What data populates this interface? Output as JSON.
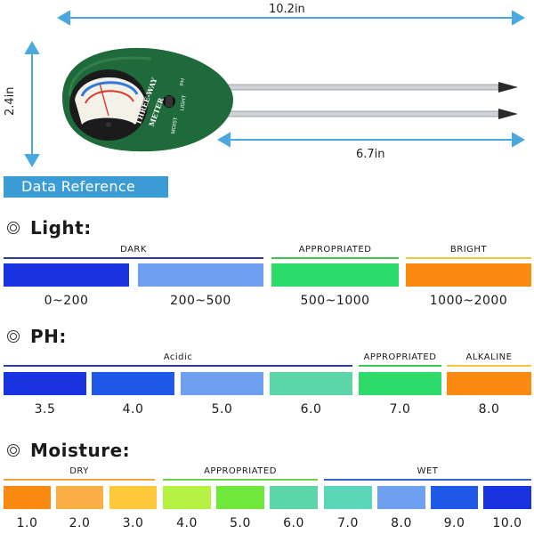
{
  "dimensions": {
    "length_total": "10.2in",
    "height": "2.4in",
    "probe_length": "6.7in"
  },
  "meter": {
    "brand_line1": "THREE-WAY",
    "brand_line2": "METER",
    "switch_labels": [
      "PH",
      "LIGHT",
      "MOIST"
    ],
    "body_color": "#1e6a3a"
  },
  "banner": "Data Reference",
  "light": {
    "title": "Light:",
    "categories": [
      {
        "label": "DARK",
        "color": "#2a3b9a"
      },
      {
        "label": "APPROPRIATED",
        "color": "#3ec44f"
      },
      {
        "label": "BRIGHT",
        "color": "#f2c53b"
      }
    ],
    "bars": [
      {
        "color": "#1a33e0",
        "value": "0~200"
      },
      {
        "color": "#6f9ff0",
        "value": "200~500"
      },
      {
        "color": "#2ddb6a",
        "value": "500~1000"
      },
      {
        "color": "#fb8a12",
        "value": "1000~2000"
      }
    ]
  },
  "ph": {
    "title": "PH:",
    "categories": [
      {
        "label": "Acidic",
        "color": "#2a3b9a"
      },
      {
        "label": "APPROPRIATED",
        "color": "#3ec44f"
      },
      {
        "label": "ALKALINE",
        "color": "#f2c53b"
      }
    ],
    "bars": [
      {
        "color": "#1a33e0",
        "value": "3.5"
      },
      {
        "color": "#1f59e8",
        "value": "4.0"
      },
      {
        "color": "#6f9ff0",
        "value": "5.0"
      },
      {
        "color": "#5cd6a8",
        "value": "6.0"
      },
      {
        "color": "#2ddb6a",
        "value": "7.0"
      },
      {
        "color": "#fb8a12",
        "value": "8.0"
      }
    ]
  },
  "moisture": {
    "title": "Moisture:",
    "categories": [
      {
        "label": "DRY",
        "color": "#f2a33b"
      },
      {
        "label": "APPROPRIATED",
        "color": "#6fd44a"
      },
      {
        "label": "WET",
        "color": "#3a5fd0"
      }
    ],
    "bars": [
      {
        "color": "#fb8a12",
        "value": "1.0"
      },
      {
        "color": "#fbae45",
        "value": "2.0"
      },
      {
        "color": "#fdc83a",
        "value": "3.0"
      },
      {
        "color": "#b6f243",
        "value": "4.0"
      },
      {
        "color": "#6fe83c",
        "value": "5.0"
      },
      {
        "color": "#5cd6a8",
        "value": "6.0"
      },
      {
        "color": "#5cd6b8",
        "value": "7.0"
      },
      {
        "color": "#6f9ff0",
        "value": "8.0"
      },
      {
        "color": "#1f59e8",
        "value": "9.0"
      },
      {
        "color": "#1a33e0",
        "value": "10.0"
      }
    ]
  }
}
